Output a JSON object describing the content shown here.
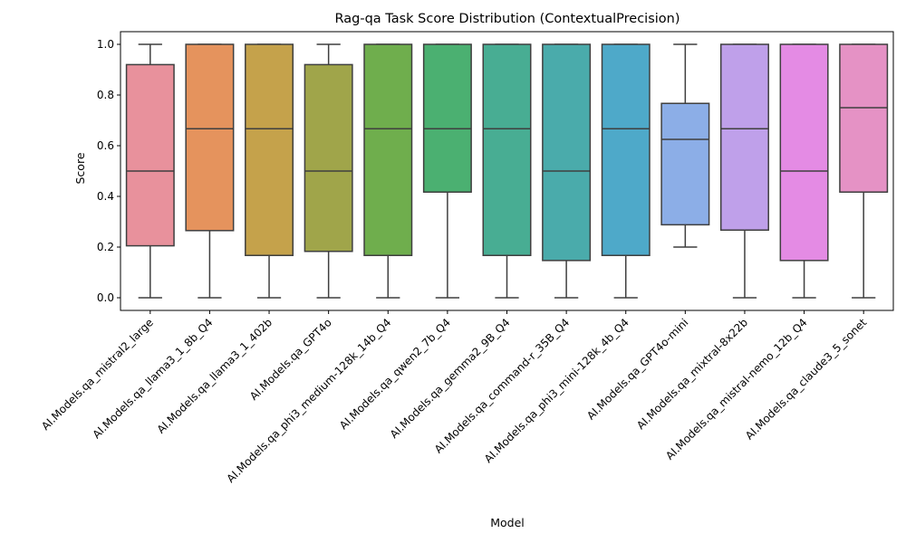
{
  "chart_data": {
    "type": "box",
    "title": "Rag-qa Task Score Distribution (ContextualPrecision)",
    "xlabel": "Model",
    "ylabel": "Score",
    "ylim": [
      -0.05,
      1.05
    ],
    "yticks": [
      0.0,
      0.2,
      0.4,
      0.6,
      0.8,
      1.0
    ],
    "ytick_labels": [
      "0.0",
      "0.2",
      "0.4",
      "0.6",
      "0.8",
      "1.0"
    ],
    "grid": false,
    "legend": "none",
    "boxes": [
      {
        "label": "AI.Models.qa_mistral2_large",
        "whislo": 0.0,
        "q1": 0.205,
        "med": 0.5,
        "q3": 0.92,
        "whishi": 1.0,
        "color": "#e8919c"
      },
      {
        "label": "AI.Models.qa_llama3_1_8b_Q4",
        "whislo": 0.0,
        "q1": 0.265,
        "med": 0.667,
        "q3": 1.0,
        "whishi": 1.0,
        "color": "#e5935d"
      },
      {
        "label": "AI.Models.qa_llama3_1_402b",
        "whislo": 0.0,
        "q1": 0.167,
        "med": 0.667,
        "q3": 1.0,
        "whishi": 1.0,
        "color": "#c5a24b"
      },
      {
        "label": "AI.Models.qa_GPT4o",
        "whislo": 0.0,
        "q1": 0.183,
        "med": 0.5,
        "q3": 0.92,
        "whishi": 1.0,
        "color": "#a0a54a"
      },
      {
        "label": "AI.Models.qa_phi3_medium-128k_14b_Q4",
        "whislo": 0.0,
        "q1": 0.167,
        "med": 0.667,
        "q3": 1.0,
        "whishi": 1.0,
        "color": "#6fae4d"
      },
      {
        "label": "AI.Models.qa_qwen2_7b_Q4",
        "whislo": 0.0,
        "q1": 0.417,
        "med": 0.667,
        "q3": 1.0,
        "whishi": 1.0,
        "color": "#4bb071"
      },
      {
        "label": "AI.Models.qa_gemma2_9B_Q4",
        "whislo": 0.0,
        "q1": 0.167,
        "med": 0.667,
        "q3": 1.0,
        "whishi": 1.0,
        "color": "#48ad93"
      },
      {
        "label": "AI.Models.qa_command-r_35B_Q4",
        "whislo": 0.0,
        "q1": 0.147,
        "med": 0.5,
        "q3": 1.0,
        "whishi": 1.0,
        "color": "#4aabab"
      },
      {
        "label": "AI.Models.qa_phi3_mini-128k_4b_Q4",
        "whislo": 0.0,
        "q1": 0.167,
        "med": 0.667,
        "q3": 1.0,
        "whishi": 1.0,
        "color": "#4ea9c9"
      },
      {
        "label": "AI.Models.qa_GPT4o-mini",
        "whislo": 0.2,
        "q1": 0.288,
        "med": 0.625,
        "q3": 0.767,
        "whishi": 1.0,
        "color": "#8caee7"
      },
      {
        "label": "AI.Models.qa_mixtral-8x22b",
        "whislo": 0.0,
        "q1": 0.267,
        "med": 0.667,
        "q3": 1.0,
        "whishi": 1.0,
        "color": "#bfa0ea"
      },
      {
        "label": "AI.Models.qa_mistral-nemo_12b_Q4",
        "whislo": 0.0,
        "q1": 0.147,
        "med": 0.5,
        "q3": 1.0,
        "whishi": 1.0,
        "color": "#e48be4"
      },
      {
        "label": "AI.Models.qa_claude3_5_sonet",
        "whislo": 0.0,
        "q1": 0.417,
        "med": 0.75,
        "q3": 1.0,
        "whishi": 1.0,
        "color": "#e592c5"
      }
    ]
  }
}
